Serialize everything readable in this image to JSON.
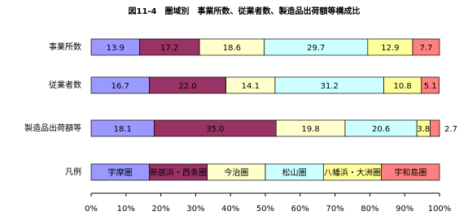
{
  "chart_data": {
    "type": "stacked-bar-horizontal",
    "title": "図11-4　圏域別　事業所数、従業者数、製造品出荷額等構成比",
    "categories": [
      "事業所数",
      "従業者数",
      "製造品出荷額等"
    ],
    "legend_label": "凡例",
    "series": [
      {
        "name": "宇摩圏",
        "color": "#9999ff",
        "values": [
          13.9,
          16.7,
          18.1
        ],
        "value_labels": [
          "13.9",
          "16.7",
          "18.1"
        ]
      },
      {
        "name": "新居浜・西条圏",
        "color": "#993366",
        "values": [
          17.2,
          22,
          35
        ],
        "value_labels": [
          "17.2",
          "22.0",
          "35.0"
        ]
      },
      {
        "name": "今治圏",
        "color": "#ffffcc",
        "values": [
          18.6,
          14.1,
          19.8
        ],
        "value_labels": [
          "18.6",
          "14.1",
          "19.8"
        ]
      },
      {
        "name": "松山圏",
        "color": "#ccffff",
        "values": [
          29.7,
          31.2,
          20.6
        ],
        "value_labels": [
          "29.7",
          "31.2",
          "20.6"
        ]
      },
      {
        "name": "八幡浜・大洲圏",
        "color": "#ffff99",
        "values": [
          12.9,
          10.8,
          3.8
        ],
        "value_labels": [
          "12.9",
          "10.8",
          "3.8"
        ]
      },
      {
        "name": "宇和島圏",
        "color": "#ff8080",
        "values": [
          7.7,
          5.1,
          2.7
        ],
        "value_labels": [
          "7.7",
          "5.1",
          "2.7"
        ]
      }
    ],
    "xlim": [
      0,
      100
    ],
    "xticks": [
      {
        "value": 0,
        "label": "0%"
      },
      {
        "value": 10,
        "label": "10%"
      },
      {
        "value": 20,
        "label": "20%"
      },
      {
        "value": 30,
        "label": "30%"
      },
      {
        "value": 40,
        "label": "40%"
      },
      {
        "value": 50,
        "label": "50%"
      },
      {
        "value": 60,
        "label": "60%"
      },
      {
        "value": 70,
        "label": "70%"
      },
      {
        "value": 80,
        "label": "80%"
      },
      {
        "value": 90,
        "label": "90%"
      },
      {
        "value": 100,
        "label": "100%"
      }
    ]
  }
}
